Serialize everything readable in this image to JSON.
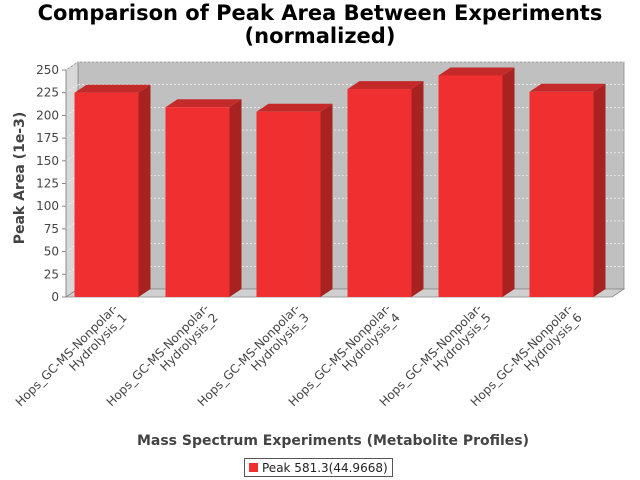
{
  "chart_data": {
    "type": "bar",
    "title_lines": [
      "Comparison of Peak Area Between Experiments",
      "(normalized)"
    ],
    "xlabel": "Mass Spectrum Experiments (Metabolite Profiles)",
    "ylabel": "Peak Area (1e-3)",
    "categories": [
      [
        "Hops_GC-MS-Nonpolar-",
        "Hydrolysis_1"
      ],
      [
        "Hops_GC-MS-Nonpolar-",
        "Hydrolysis_2"
      ],
      [
        "Hops_GC-MS-Nonpolar-",
        "Hydrolysis_3"
      ],
      [
        "Hops_GC-MS-Nonpolar-",
        "Hydrolysis_4"
      ],
      [
        "Hops_GC-MS-Nonpolar-",
        "Hydrolysis_5"
      ],
      [
        "Hops_GC-MS-Nonpolar-",
        "Hydrolysis_6"
      ]
    ],
    "series": [
      {
        "name": "Peak 581.3(44.9668)",
        "values": [
          225,
          209,
          204,
          229,
          244,
          226
        ]
      }
    ],
    "ylim": [
      0,
      250
    ],
    "yticks": [
      0,
      25,
      50,
      75,
      100,
      125,
      150,
      175,
      200,
      225,
      250
    ],
    "grid": true,
    "legend_position": "bottom",
    "colors": {
      "bar_front": "#f03030",
      "bar_top": "#c42a2a",
      "bar_side": "#a82222",
      "plot_background": "#c0c0c0",
      "plot_wall": "#d8d8d8",
      "plot_floor": "#cfcfcf"
    }
  }
}
